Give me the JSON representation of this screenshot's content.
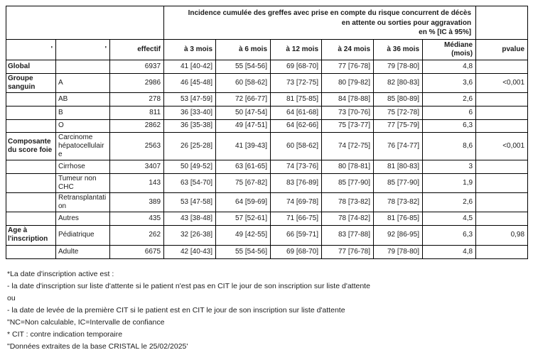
{
  "table": {
    "title": "Incidence cumulée des greffes avec prise en compte du risque concurrent de décès\nen attente ou sorties pour aggravation\nen % [IC à 95%]",
    "columns": [
      "'",
      "'",
      "effectif",
      "à 3 mois",
      "à 6 mois",
      "à 12 mois",
      "à 24 mois",
      "à 36 mois",
      "Médiane\n(mois)",
      "pvalue"
    ],
    "rows": [
      [
        "Global",
        "",
        "6937",
        "41 [40-42]",
        "55 [54-56]",
        "69 [68-70]",
        "77 [76-78]",
        "79 [78-80]",
        "4,8",
        ""
      ],
      [
        "Groupe sanguin",
        "A",
        "2986",
        "46 [45-48]",
        "60 [58-62]",
        "73 [72-75]",
        "80 [79-82]",
        "82 [80-83]",
        "3,6",
        "<0,001"
      ],
      [
        "",
        "AB",
        "278",
        "53 [47-59]",
        "72 [66-77]",
        "81 [75-85]",
        "84 [78-88]",
        "85 [80-89]",
        "2,6",
        ""
      ],
      [
        "",
        "B",
        "811",
        "36 [33-40]",
        "50 [47-54]",
        "64 [61-68]",
        "73 [70-76]",
        "75 [72-78]",
        "6",
        ""
      ],
      [
        "",
        "O",
        "2862",
        "36 [35-38]",
        "49 [47-51]",
        "64 [62-66]",
        "75 [73-77]",
        "77 [75-79]",
        "6,3",
        ""
      ],
      [
        "Composante du score foie",
        "Carcinome hépatocellulaire",
        "2563",
        "26 [25-28]",
        "41 [39-43]",
        "60 [58-62]",
        "74 [72-75]",
        "76 [74-77]",
        "8,6",
        "<0,001"
      ],
      [
        "",
        "Cirrhose",
        "3407",
        "50 [49-52]",
        "63 [61-65]",
        "74 [73-76]",
        "80 [78-81]",
        "81 [80-83]",
        "3",
        ""
      ],
      [
        "",
        "Tumeur non CHC",
        "143",
        "63 [54-70]",
        "75 [67-82]",
        "83 [76-89]",
        "85 [77-90]",
        "85 [77-90]",
        "1,9",
        ""
      ],
      [
        "",
        "Retransplantation",
        "389",
        "53 [47-58]",
        "64 [59-69]",
        "74 [69-78]",
        "78 [73-82]",
        "78 [73-82]",
        "2,6",
        ""
      ],
      [
        "",
        "Autres",
        "435",
        "43 [38-48]",
        "57 [52-61]",
        "71 [66-75]",
        "78 [74-82]",
        "81 [76-85]",
        "4,5",
        ""
      ],
      [
        "Age à l'inscription",
        "Pédiatrique",
        "262",
        "32 [26-38]",
        "49 [42-55]",
        "66 [59-71]",
        "83 [77-88]",
        "92 [86-95]",
        "6,3",
        "0,98"
      ],
      [
        "",
        "Adulte",
        "6675",
        "42 [40-43]",
        "55 [54-56]",
        "69 [68-70]",
        "77 [76-78]",
        "79 [78-80]",
        "4,8",
        ""
      ]
    ]
  },
  "footnotes": [
    "*La date d'inscription active est :",
    "- la date d'inscription sur liste d'attente si le patient n'est pas en CIT le jour de son inscription sur liste d'attente",
    "ou",
    "- la date de levée de la première CIT si le patient est en CIT le jour de son inscription sur liste d'attente",
    "\"NC=Non calculable, IC=Intervalle de confiance",
    "* CIT : contre indication temporaire",
    "\"Données extraites de la base CRISTAL le 25/02/2025'"
  ]
}
